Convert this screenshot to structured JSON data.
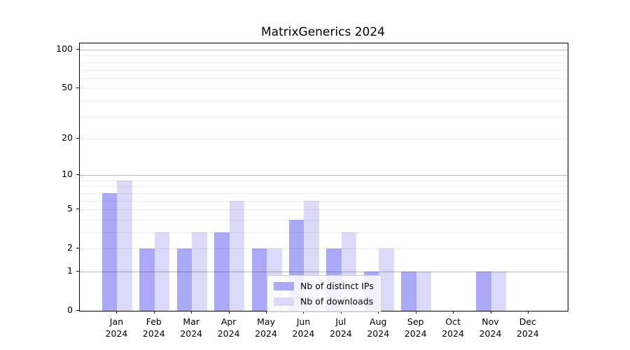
{
  "chart_data": {
    "type": "bar",
    "title": "MatrixGenerics 2024",
    "categories": [
      "Jan",
      "Feb",
      "Mar",
      "Apr",
      "May",
      "Jun",
      "Jul",
      "Aug",
      "Sep",
      "Oct",
      "Nov",
      "Dec"
    ],
    "category_year": "2024",
    "series": [
      {
        "name": "Nb of distinct IPs",
        "color": "#a9a9f7",
        "values": [
          7,
          2,
          2,
          3,
          2,
          4,
          2,
          1,
          1,
          0,
          1,
          0
        ]
      },
      {
        "name": "Nb of downloads",
        "color": "#dadaf8",
        "values": [
          9,
          3,
          3,
          6,
          2,
          6,
          3,
          2,
          1,
          0,
          1,
          0
        ]
      }
    ],
    "scale": "log1p",
    "ylim": [
      0,
      112
    ],
    "yticks": [
      0,
      1,
      2,
      5,
      10,
      20,
      50,
      100
    ],
    "ytick_labels": [
      "0",
      "1",
      "2",
      "5",
      "10",
      "20",
      "50",
      "100"
    ],
    "grid_major_values": [
      1,
      10,
      100
    ],
    "grid_minor_values": [
      2,
      3,
      4,
      5,
      6,
      7,
      8,
      9,
      20,
      30,
      40,
      50,
      60,
      70,
      80,
      90
    ],
    "xlabel": "",
    "ylabel": "",
    "legend": {
      "position": "lower center"
    },
    "colors": {
      "bar_dark": "#a9a9f7",
      "bar_light": "#dadaf8",
      "axis": "#000000",
      "legend_border": "#cccccc"
    }
  }
}
